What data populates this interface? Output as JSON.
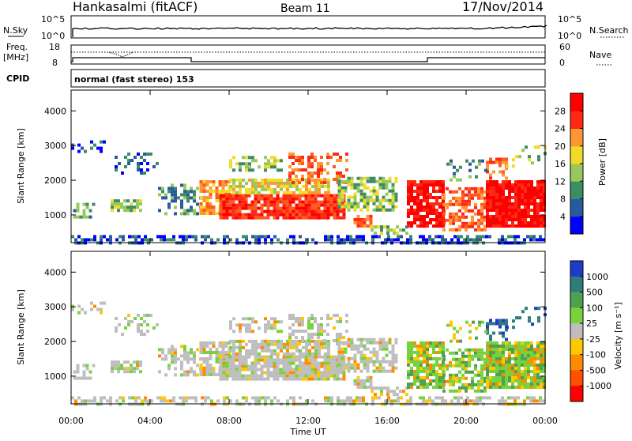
{
  "header": {
    "station": "Hankasalmi (fitACF)",
    "beam": "Beam 11",
    "date": "17/Nov/2014"
  },
  "strips": {
    "nsky_label": "N.Sky",
    "nsky_ticks": [
      "10^5",
      "10^0"
    ],
    "nsearch_label": "N.Search",
    "nsearch_ticks": [
      "10^5",
      "10^0"
    ],
    "freq_label_1": "Freq.",
    "freq_label_2": "[MHz]",
    "freq_ticks": [
      "18",
      "8"
    ],
    "nave_label": "Nave",
    "nave_ticks": [
      "60",
      "0"
    ],
    "cpid_label": "CPID",
    "cpid_value": "normal (fast stereo) 153"
  },
  "colors": {
    "power_scale": [
      "#0000ff",
      "#285aa0",
      "#3c8c64",
      "#96c85a",
      "#f0dc28",
      "#ff9632",
      "#ff5a1e",
      "#ff2814",
      "#ff0000"
    ],
    "velocity_scale": [
      "#1e3cc8",
      "#2d7d7d",
      "#50a050",
      "#78d23c",
      "#bebebe",
      "#ffc800",
      "#ff8c00",
      "#ff5000",
      "#ff0000"
    ],
    "background_scatter": "#bebebe"
  },
  "chart_data": [
    {
      "type": "heatmap",
      "title": "Power",
      "xlabel": "",
      "ylabel": "Slant Range [km]",
      "xlim": [
        "00:00",
        "24:00"
      ],
      "ylim": [
        200,
        4600
      ],
      "x_ticks": [
        "00:00",
        "04:00",
        "08:00",
        "12:00",
        "16:00",
        "20:00",
        "00:00"
      ],
      "y_ticks": [
        "1000",
        "2000",
        "3000",
        "4000"
      ],
      "colorbar": {
        "label": "Power [dB]",
        "ticks": [
          "4",
          "8",
          "12",
          "16",
          "20",
          "24",
          "28"
        ],
        "range": [
          0,
          32
        ]
      }
    },
    {
      "type": "heatmap",
      "title": "Velocity",
      "xlabel": "Time UT",
      "ylabel": "Slant Range [km]",
      "xlim": [
        "00:00",
        "24:00"
      ],
      "ylim": [
        200,
        4600
      ],
      "x_ticks": [
        "00:00",
        "04:00",
        "08:00",
        "12:00",
        "16:00",
        "20:00",
        "00:00"
      ],
      "y_ticks": [
        "1000",
        "2000",
        "3000",
        "4000"
      ],
      "colorbar": {
        "label": "Velocity [m s⁻¹]",
        "ticks": [
          "1000",
          "500",
          "100",
          "25",
          "-25",
          "-100",
          "-500",
          "-1000"
        ]
      }
    }
  ]
}
